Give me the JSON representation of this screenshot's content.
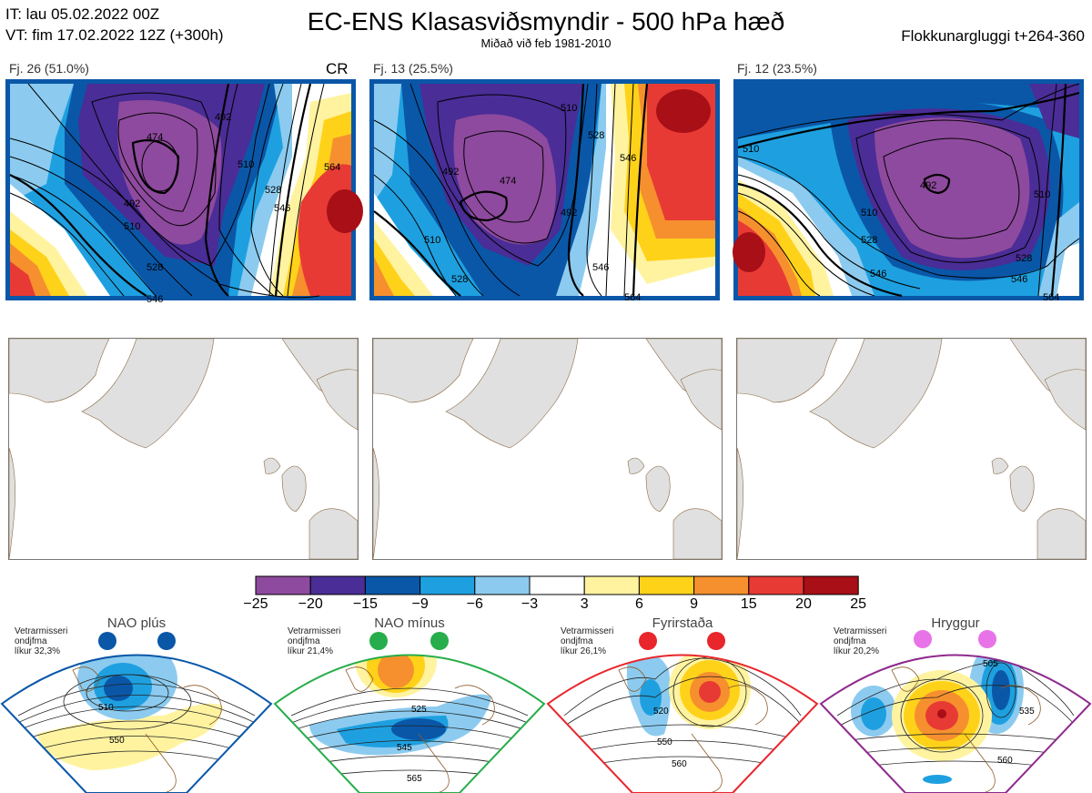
{
  "header": {
    "it_line": "IT: lau 05.02.2022 00Z",
    "vt_line": "VT: fim 17.02.2022 12Z  (+300h)",
    "title": "EC-ENS Klasasviðsmyndir - 500 hPa hæð",
    "subtitle": "Miðað við feb 1981-2010",
    "window": "Flokkunargluggi t+264-360"
  },
  "clusters": [
    {
      "label": "Fj. 26 (51.0%)",
      "tag": "CR",
      "contours": [
        "474",
        "492",
        "510",
        "528",
        "546",
        "528",
        "546",
        "564",
        "492",
        "510"
      ]
    },
    {
      "label": "Fj. 13 (25.5%)",
      "tag": "",
      "contours": [
        "474",
        "492",
        "510",
        "528",
        "546",
        "564",
        "528",
        "546",
        "510"
      ]
    },
    {
      "label": "Fj. 12 (23.5%)",
      "tag": "",
      "contours": [
        "492",
        "510",
        "528",
        "546",
        "510",
        "528",
        "546",
        "564"
      ]
    }
  ],
  "colorbar": {
    "ticks": [
      "−25",
      "−20",
      "−15",
      "−9",
      "−6",
      "−3",
      "3",
      "6",
      "9",
      "15",
      "20",
      "25"
    ],
    "colors": [
      "#8e4a9e",
      "#4a2d96",
      "#0a57a8",
      "#1ea0e0",
      "#8ccbef",
      "#ffffff",
      "#fff3a0",
      "#ffd21a",
      "#f6902e",
      "#e83a34",
      "#a80f16"
    ]
  },
  "regimes": [
    {
      "name": "NAO plús",
      "note1": "Vetrarmisseri",
      "note2": "ondjfma",
      "note3": "líkur 32,3%",
      "color": "#0a57a8",
      "labels": [
        "510",
        "550"
      ]
    },
    {
      "name": "NAO mínus",
      "note1": "Vetrarmisseri",
      "note2": "ondjfma",
      "note3": "líkur 21,4%",
      "color": "#27ad4b",
      "labels": [
        "525",
        "545",
        "565"
      ]
    },
    {
      "name": "Fyrirstaða",
      "note1": "Vetrarmisseri",
      "note2": "ondjfma",
      "note3": "líkur 26,1%",
      "color": "#e8262c",
      "labels": [
        "520",
        "550",
        "560"
      ]
    },
    {
      "name": "Hryggur",
      "note1": "Vetrarmisseri",
      "note2": "ondjfma",
      "note3": "líkur 20,2%",
      "color": "#e873e8",
      "labels": [
        "505",
        "535",
        "560"
      ]
    }
  ]
}
